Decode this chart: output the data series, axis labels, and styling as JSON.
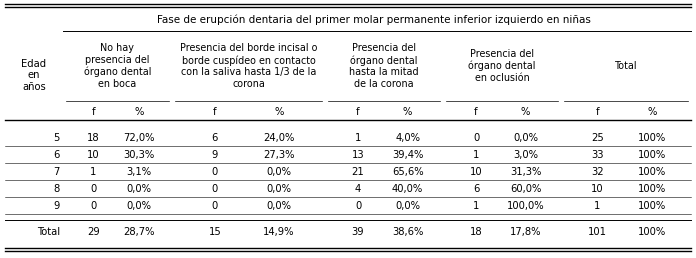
{
  "title": "Fase de erupción dentaria del primer molar permanente inferior izquierdo en niñas",
  "col_groups": [
    {
      "label": "No hay\npresencia del\nórgano dental\nen boca"
    },
    {
      "label": "Presencia del borde incisal o\nborde cuspídeo en contacto\ncon la saliva hasta 1/3 de la\ncorona"
    },
    {
      "label": "Presencia del\nórgano dental\nhasta la mitad\nde la corona"
    },
    {
      "label": "Presencia del\nórgano dental\nen oclusión"
    },
    {
      "label": "Total"
    }
  ],
  "rows": [
    [
      "5",
      "18",
      "72,0%",
      "6",
      "24,0%",
      "1",
      "4,0%",
      "0",
      "0,0%",
      "25",
      "100%"
    ],
    [
      "6",
      "10",
      "30,3%",
      "9",
      "27,3%",
      "13",
      "39,4%",
      "1",
      "3,0%",
      "33",
      "100%"
    ],
    [
      "7",
      "1",
      "3,1%",
      "0",
      "0,0%",
      "21",
      "65,6%",
      "10",
      "31,3%",
      "32",
      "100%"
    ],
    [
      "8",
      "0",
      "0,0%",
      "0",
      "0,0%",
      "4",
      "40,0%",
      "6",
      "60,0%",
      "10",
      "100%"
    ],
    [
      "9",
      "0",
      "0,0%",
      "0",
      "0,0%",
      "0",
      "0,0%",
      "1",
      "100,0%",
      "1",
      "100%"
    ],
    [
      "Total",
      "29",
      "28,7%",
      "15",
      "14,9%",
      "39",
      "38,6%",
      "18",
      "17,8%",
      "101",
      "100%"
    ]
  ],
  "fs": 7.2
}
